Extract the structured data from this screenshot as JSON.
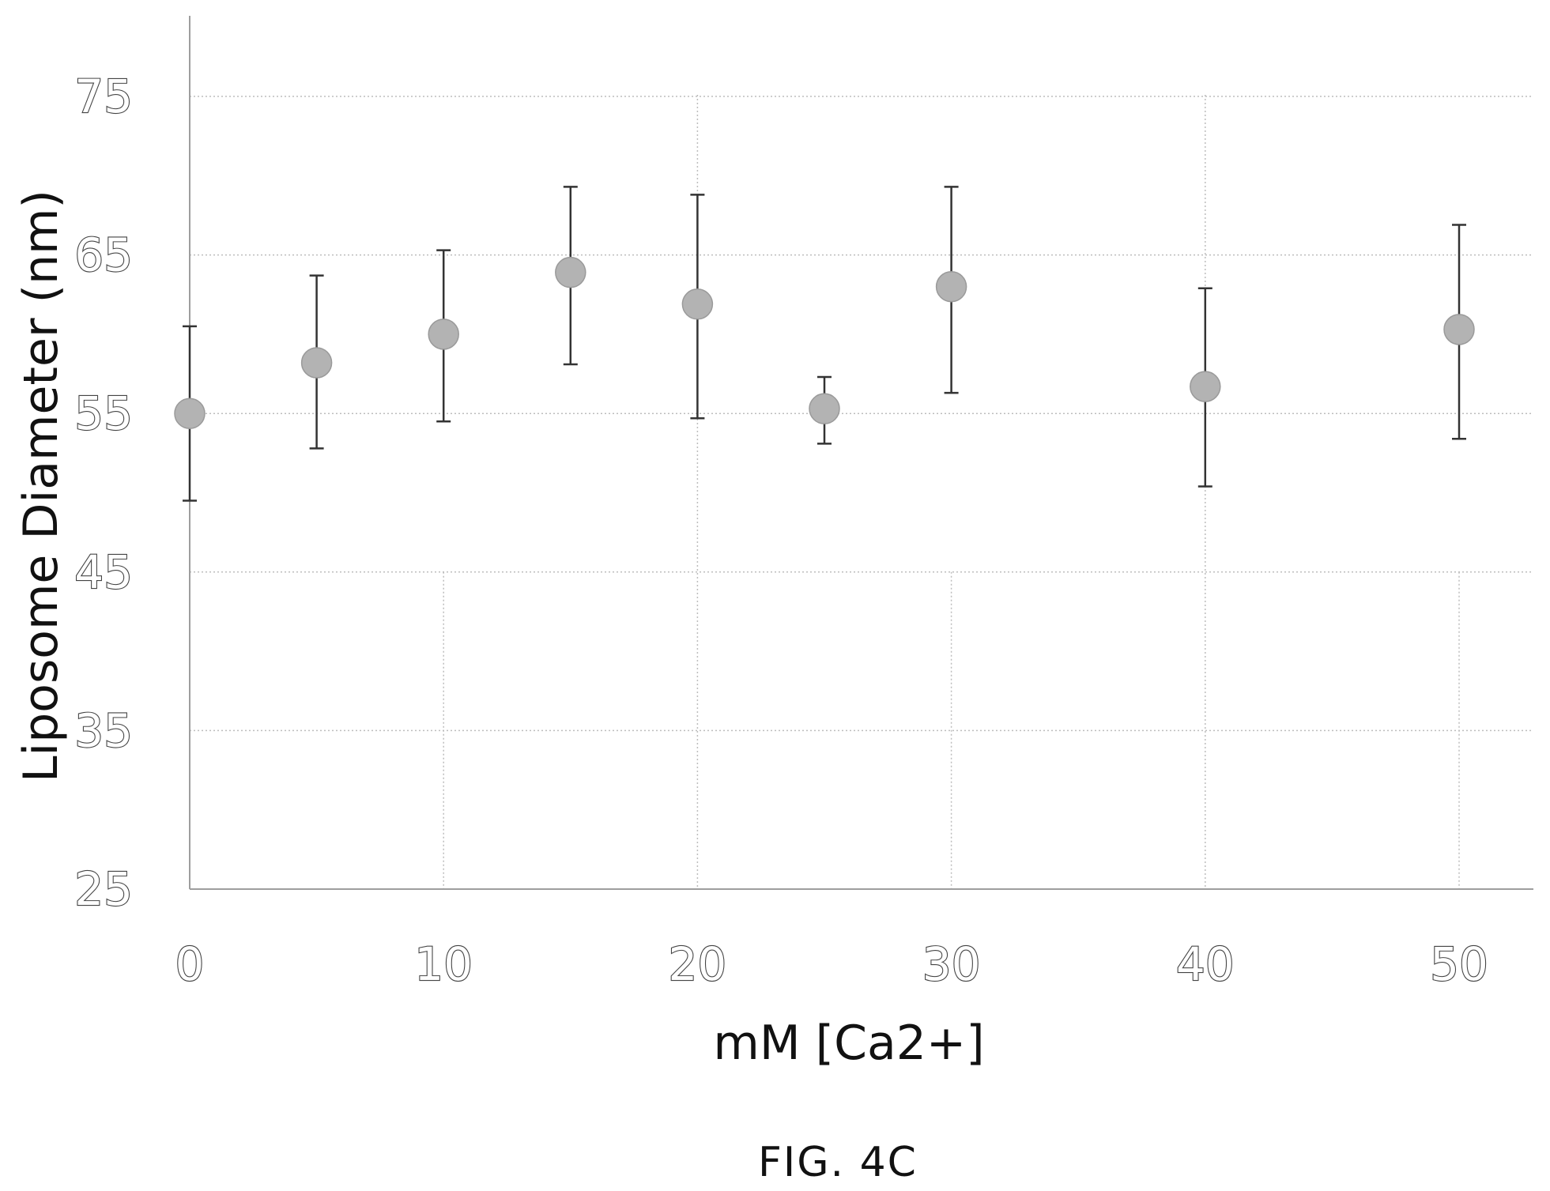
{
  "chart_data": {
    "type": "scatter",
    "title": "",
    "xlabel": "mM [Ca2+]",
    "ylabel": "Liposome Diameter (nm)",
    "xlim": [
      0,
      53
    ],
    "ylim": [
      25,
      80
    ],
    "x_ticks": [
      0,
      10,
      20,
      30,
      40,
      50
    ],
    "y_ticks": [
      25,
      35,
      45,
      55,
      65,
      75
    ],
    "grid": true,
    "series": [
      {
        "points": [
          {
            "x": 0,
            "y": 55.0,
            "err_low": 49.5,
            "err_high": 60.5
          },
          {
            "x": 5,
            "y": 58.2,
            "err_low": 52.8,
            "err_high": 63.7
          },
          {
            "x": 10,
            "y": 60.0,
            "err_low": 54.5,
            "err_high": 65.3
          },
          {
            "x": 15,
            "y": 63.9,
            "err_low": 58.1,
            "err_high": 69.3
          },
          {
            "x": 20,
            "y": 61.9,
            "err_low": 54.7,
            "err_high": 68.8
          },
          {
            "x": 25,
            "y": 55.3,
            "err_low": 53.1,
            "err_high": 57.3
          },
          {
            "x": 30,
            "y": 63.0,
            "err_low": 56.3,
            "err_high": 69.3
          },
          {
            "x": 40,
            "y": 56.7,
            "err_low": 50.4,
            "err_high": 62.9
          },
          {
            "x": 50,
            "y": 60.3,
            "err_low": 53.4,
            "err_high": 66.9
          }
        ]
      }
    ]
  },
  "caption": "FIG.  4C"
}
